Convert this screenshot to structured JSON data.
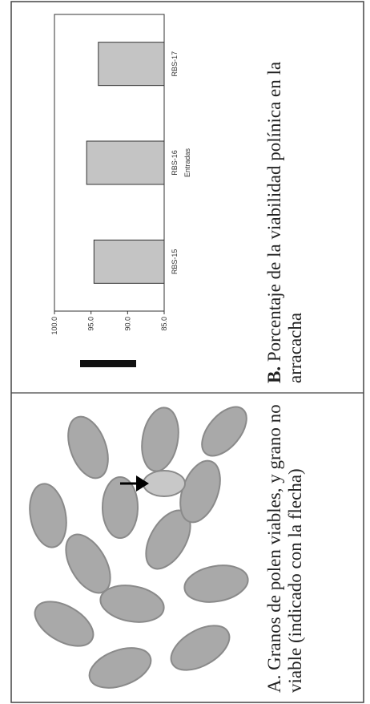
{
  "caption_a": "A. Granos de polen viables, y grano no viable (indicado con la flecha)",
  "caption_b": {
    "label": "B.",
    "text": "Porcentaje de la viabilidad polínica en la arracacha"
  },
  "chart_data": {
    "type": "bar",
    "x_label": "Entradas",
    "categories": [
      "RBS-15",
      "RBS-16",
      "RBS-17"
    ],
    "values": [
      94.6,
      95.6,
      94.0
    ],
    "color": "#c4c4c4",
    "ylim": [
      85,
      100
    ],
    "yticks": [
      {
        "value": 85,
        "label": "85.0"
      },
      {
        "value": 90,
        "label": "90.0"
      },
      {
        "value": 95,
        "label": "95.0"
      },
      {
        "value": 100,
        "label": "100.0"
      }
    ]
  }
}
